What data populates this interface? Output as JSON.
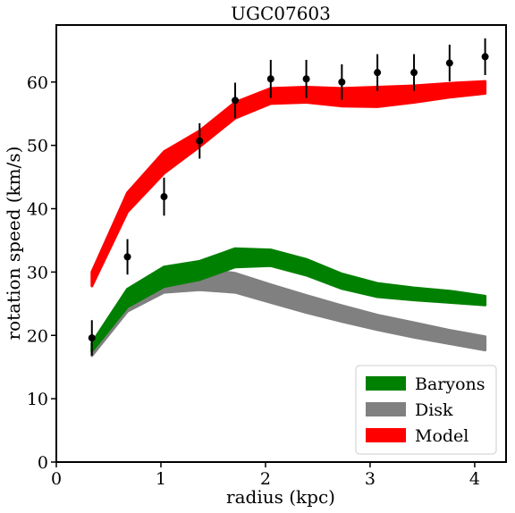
{
  "chart_data": {
    "type": "area",
    "title": "UGC07603",
    "xlabel": "radius (kpc)",
    "ylabel": "rotation speed (km/s)",
    "xlim": [
      0,
      4.3
    ],
    "ylim": [
      0,
      69
    ],
    "xticks": [
      0,
      1,
      2,
      3,
      4
    ],
    "yticks": [
      0,
      10,
      20,
      30,
      40,
      50,
      60
    ],
    "grid": false,
    "legend_position": "lower-right",
    "x": [
      0.34,
      0.68,
      1.03,
      1.37,
      1.71,
      2.05,
      2.39,
      2.73,
      3.07,
      3.42,
      3.76,
      4.1
    ],
    "bands": [
      {
        "name": "Disk",
        "color": "#808080",
        "lower": [
          16.8,
          23.8,
          26.8,
          27.2,
          26.8,
          25.2,
          23.6,
          22.2,
          20.9,
          19.7,
          18.7,
          17.7
        ],
        "upper": [
          17.9,
          26.3,
          29.9,
          30.5,
          29.8,
          28.0,
          26.3,
          24.7,
          23.2,
          22.0,
          20.8,
          19.8
        ]
      },
      {
        "name": "Baryons",
        "color": "#008000",
        "lower": [
          17.5,
          24.5,
          27.7,
          28.8,
          30.8,
          31.0,
          29.5,
          27.4,
          26.1,
          25.6,
          25.2,
          24.8
        ],
        "upper": [
          18.8,
          27.3,
          30.8,
          31.7,
          33.7,
          33.5,
          32.0,
          29.7,
          28.2,
          27.5,
          27.0,
          26.2
        ]
      },
      {
        "name": "Model",
        "color": "#ff0000",
        "lower": [
          27.8,
          39.5,
          45.6,
          49.8,
          54.3,
          56.6,
          56.8,
          56.2,
          56.1,
          56.8,
          57.6,
          58.2
        ],
        "upper": [
          30.0,
          42.5,
          49.0,
          52.3,
          56.8,
          59.0,
          59.2,
          59.0,
          59.2,
          59.4,
          59.8,
          60.1
        ]
      }
    ],
    "observed": {
      "color": "#000000",
      "x": [
        0.34,
        0.68,
        1.03,
        1.37,
        1.71,
        2.05,
        2.39,
        2.73,
        3.07,
        3.42,
        3.76,
        4.1
      ],
      "y": [
        19.6,
        32.4,
        41.9,
        50.7,
        57.1,
        60.5,
        60.5,
        60.0,
        61.5,
        61.5,
        63.0,
        64.0
      ],
      "err": [
        2.8,
        2.8,
        3.0,
        2.8,
        2.8,
        3.0,
        3.0,
        2.8,
        2.9,
        2.9,
        2.9,
        2.9
      ]
    },
    "legend": [
      {
        "label": "Baryons",
        "color": "#008000"
      },
      {
        "label": "Disk",
        "color": "#808080"
      },
      {
        "label": "Model",
        "color": "#ff0000"
      }
    ]
  }
}
